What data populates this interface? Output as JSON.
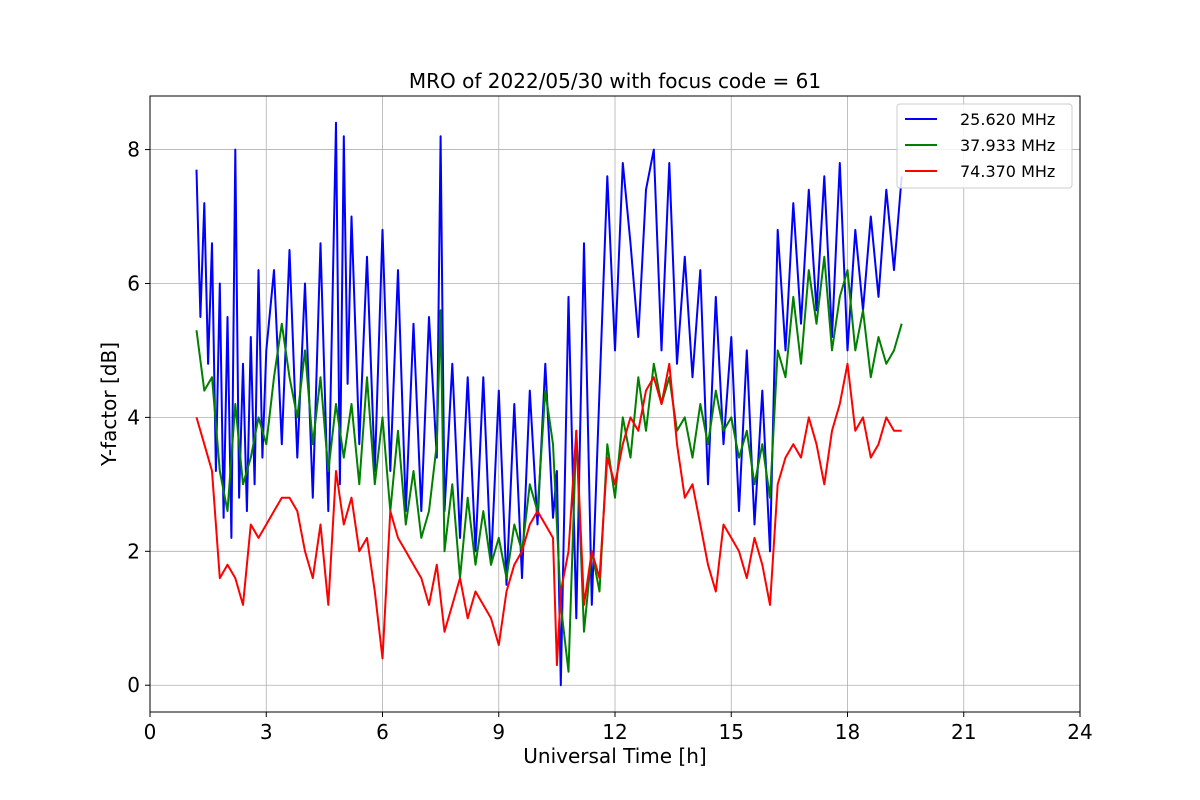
{
  "chart_data": {
    "type": "line",
    "title": "MRO of 2022/05/30 with focus code = 61",
    "xlabel": "Universal Time [h]",
    "ylabel": "Y-factor [dB]",
    "xlim": [
      0,
      24
    ],
    "ylim": [
      -0.4,
      8.8
    ],
    "xticks": [
      0,
      3,
      6,
      9,
      12,
      15,
      18,
      21,
      24
    ],
    "yticks": [
      0,
      2,
      4,
      6,
      8
    ],
    "grid": true,
    "legend_position": "top-right",
    "series": [
      {
        "name": "25.620 MHz",
        "color": "#0000ff",
        "x": [
          1.2,
          1.3,
          1.4,
          1.5,
          1.6,
          1.7,
          1.8,
          1.9,
          2.0,
          2.1,
          2.2,
          2.3,
          2.4,
          2.5,
          2.6,
          2.7,
          2.8,
          2.9,
          3.0,
          3.2,
          3.4,
          3.6,
          3.8,
          4.0,
          4.2,
          4.4,
          4.6,
          4.8,
          4.9,
          5.0,
          5.1,
          5.2,
          5.4,
          5.6,
          5.8,
          6.0,
          6.2,
          6.4,
          6.6,
          6.8,
          7.0,
          7.2,
          7.4,
          7.5,
          7.6,
          7.8,
          8.0,
          8.2,
          8.4,
          8.6,
          8.8,
          9.0,
          9.2,
          9.4,
          9.6,
          9.8,
          10.0,
          10.2,
          10.4,
          10.5,
          10.6,
          10.8,
          11.0,
          11.2,
          11.4,
          11.6,
          11.8,
          12.0,
          12.2,
          12.4,
          12.6,
          12.8,
          13.0,
          13.2,
          13.4,
          13.6,
          13.8,
          14.0,
          14.2,
          14.4,
          14.6,
          14.8,
          15.0,
          15.2,
          15.4,
          15.6,
          15.8,
          16.0,
          16.2,
          16.4,
          16.6,
          16.8,
          17.0,
          17.2,
          17.4,
          17.6,
          17.8,
          18.0,
          18.2,
          18.4,
          18.6,
          18.8,
          19.0,
          19.2,
          19.4
        ],
        "y": [
          7.7,
          5.5,
          7.2,
          4.8,
          6.6,
          3.2,
          6.0,
          2.5,
          5.5,
          2.2,
          8.0,
          2.8,
          4.8,
          2.6,
          5.2,
          3.0,
          6.2,
          3.4,
          5.0,
          6.2,
          3.6,
          6.5,
          3.4,
          6.0,
          2.8,
          6.6,
          2.6,
          8.4,
          3.0,
          8.2,
          4.5,
          7.0,
          3.6,
          6.4,
          3.2,
          6.8,
          3.2,
          6.2,
          2.6,
          5.4,
          2.6,
          5.5,
          3.4,
          8.2,
          2.6,
          4.8,
          2.2,
          4.6,
          2.0,
          4.6,
          1.8,
          4.4,
          1.5,
          4.2,
          1.6,
          4.4,
          2.4,
          4.8,
          2.5,
          3.2,
          0.0,
          5.8,
          1.0,
          6.6,
          1.2,
          4.4,
          7.6,
          5.0,
          7.8,
          6.6,
          5.2,
          7.4,
          8.0,
          5.0,
          7.8,
          4.8,
          6.4,
          4.6,
          6.2,
          3.0,
          5.8,
          3.6,
          5.2,
          2.6,
          5.0,
          2.4,
          4.4,
          2.0,
          6.8,
          5.0,
          7.2,
          5.4,
          7.4,
          5.6,
          7.6,
          5.2,
          7.8,
          5.0,
          6.8,
          5.6,
          7.0,
          5.8,
          7.4,
          6.2,
          7.6
        ]
      },
      {
        "name": "37.933 MHz",
        "color": "#008000",
        "x": [
          1.2,
          1.4,
          1.6,
          1.8,
          2.0,
          2.2,
          2.4,
          2.6,
          2.8,
          3.0,
          3.2,
          3.4,
          3.6,
          3.8,
          4.0,
          4.2,
          4.4,
          4.6,
          4.8,
          5.0,
          5.2,
          5.4,
          5.6,
          5.8,
          6.0,
          6.2,
          6.4,
          6.6,
          6.8,
          7.0,
          7.2,
          7.4,
          7.5,
          7.6,
          7.8,
          8.0,
          8.2,
          8.4,
          8.6,
          8.8,
          9.0,
          9.2,
          9.4,
          9.6,
          9.8,
          10.0,
          10.2,
          10.4,
          10.6,
          10.8,
          11.0,
          11.2,
          11.4,
          11.6,
          11.8,
          12.0,
          12.2,
          12.4,
          12.6,
          12.8,
          13.0,
          13.2,
          13.4,
          13.6,
          13.8,
          14.0,
          14.2,
          14.4,
          14.6,
          14.8,
          15.0,
          15.2,
          15.4,
          15.6,
          15.8,
          16.0,
          16.2,
          16.4,
          16.6,
          16.8,
          17.0,
          17.2,
          17.4,
          17.6,
          17.8,
          18.0,
          18.2,
          18.4,
          18.6,
          18.8,
          19.0,
          19.2,
          19.4
        ],
        "y": [
          5.3,
          4.4,
          4.6,
          3.2,
          2.6,
          4.2,
          3.0,
          3.4,
          4.0,
          3.6,
          4.6,
          5.4,
          4.6,
          4.0,
          5.0,
          3.6,
          4.6,
          3.2,
          4.2,
          3.4,
          4.2,
          3.0,
          4.6,
          3.0,
          4.0,
          2.6,
          3.8,
          2.4,
          3.2,
          2.2,
          2.6,
          3.6,
          5.6,
          2.0,
          3.0,
          1.6,
          2.8,
          1.8,
          2.6,
          1.8,
          2.2,
          1.6,
          2.4,
          2.0,
          3.0,
          2.6,
          4.4,
          3.6,
          1.2,
          0.2,
          3.8,
          0.8,
          2.0,
          1.4,
          3.6,
          2.8,
          4.0,
          3.4,
          4.6,
          3.8,
          4.8,
          4.2,
          4.6,
          3.8,
          4.0,
          3.4,
          4.2,
          3.6,
          4.4,
          3.8,
          4.0,
          3.4,
          3.8,
          3.0,
          3.6,
          2.8,
          5.0,
          4.6,
          5.8,
          4.8,
          6.2,
          5.4,
          6.4,
          5.0,
          5.8,
          6.2,
          5.0,
          5.6,
          4.6,
          5.2,
          4.8,
          5.0,
          5.4
        ]
      },
      {
        "name": "74.370 MHz",
        "color": "#ff0000",
        "x": [
          1.2,
          1.4,
          1.6,
          1.8,
          2.0,
          2.2,
          2.4,
          2.6,
          2.8,
          3.0,
          3.2,
          3.4,
          3.6,
          3.8,
          4.0,
          4.2,
          4.4,
          4.6,
          4.8,
          5.0,
          5.2,
          5.4,
          5.6,
          5.8,
          6.0,
          6.2,
          6.4,
          6.6,
          6.8,
          7.0,
          7.2,
          7.4,
          7.6,
          7.8,
          8.0,
          8.2,
          8.4,
          8.6,
          8.8,
          9.0,
          9.2,
          9.4,
          9.6,
          9.8,
          10.0,
          10.2,
          10.4,
          10.5,
          10.6,
          10.8,
          11.0,
          11.2,
          11.4,
          11.6,
          11.8,
          12.0,
          12.2,
          12.4,
          12.6,
          12.8,
          13.0,
          13.2,
          13.4,
          13.6,
          13.8,
          14.0,
          14.2,
          14.4,
          14.6,
          14.8,
          15.0,
          15.2,
          15.4,
          15.6,
          15.8,
          16.0,
          16.2,
          16.4,
          16.6,
          16.8,
          17.0,
          17.2,
          17.4,
          17.6,
          17.8,
          18.0,
          18.2,
          18.4,
          18.6,
          18.8,
          19.0,
          19.2,
          19.4
        ],
        "y": [
          4.0,
          3.6,
          3.2,
          1.6,
          1.8,
          1.6,
          1.2,
          2.4,
          2.2,
          2.4,
          2.6,
          2.8,
          2.8,
          2.6,
          2.0,
          1.6,
          2.4,
          1.2,
          3.2,
          2.4,
          2.8,
          2.0,
          2.2,
          1.4,
          0.4,
          2.6,
          2.2,
          2.0,
          1.8,
          1.6,
          1.2,
          1.8,
          0.8,
          1.2,
          1.6,
          1.0,
          1.4,
          1.2,
          1.0,
          0.6,
          1.4,
          1.8,
          2.0,
          2.4,
          2.6,
          2.4,
          2.2,
          0.3,
          1.4,
          2.0,
          3.8,
          1.2,
          2.0,
          1.6,
          3.4,
          3.0,
          3.6,
          4.0,
          3.8,
          4.4,
          4.6,
          4.2,
          4.8,
          3.6,
          2.8,
          3.0,
          2.4,
          1.8,
          1.4,
          2.4,
          2.2,
          2.0,
          1.6,
          2.2,
          1.8,
          1.2,
          3.0,
          3.4,
          3.6,
          3.4,
          4.0,
          3.6,
          3.0,
          3.8,
          4.2,
          4.8,
          3.8,
          4.0,
          3.4,
          3.6,
          4.0,
          3.8,
          3.8
        ]
      }
    ]
  }
}
